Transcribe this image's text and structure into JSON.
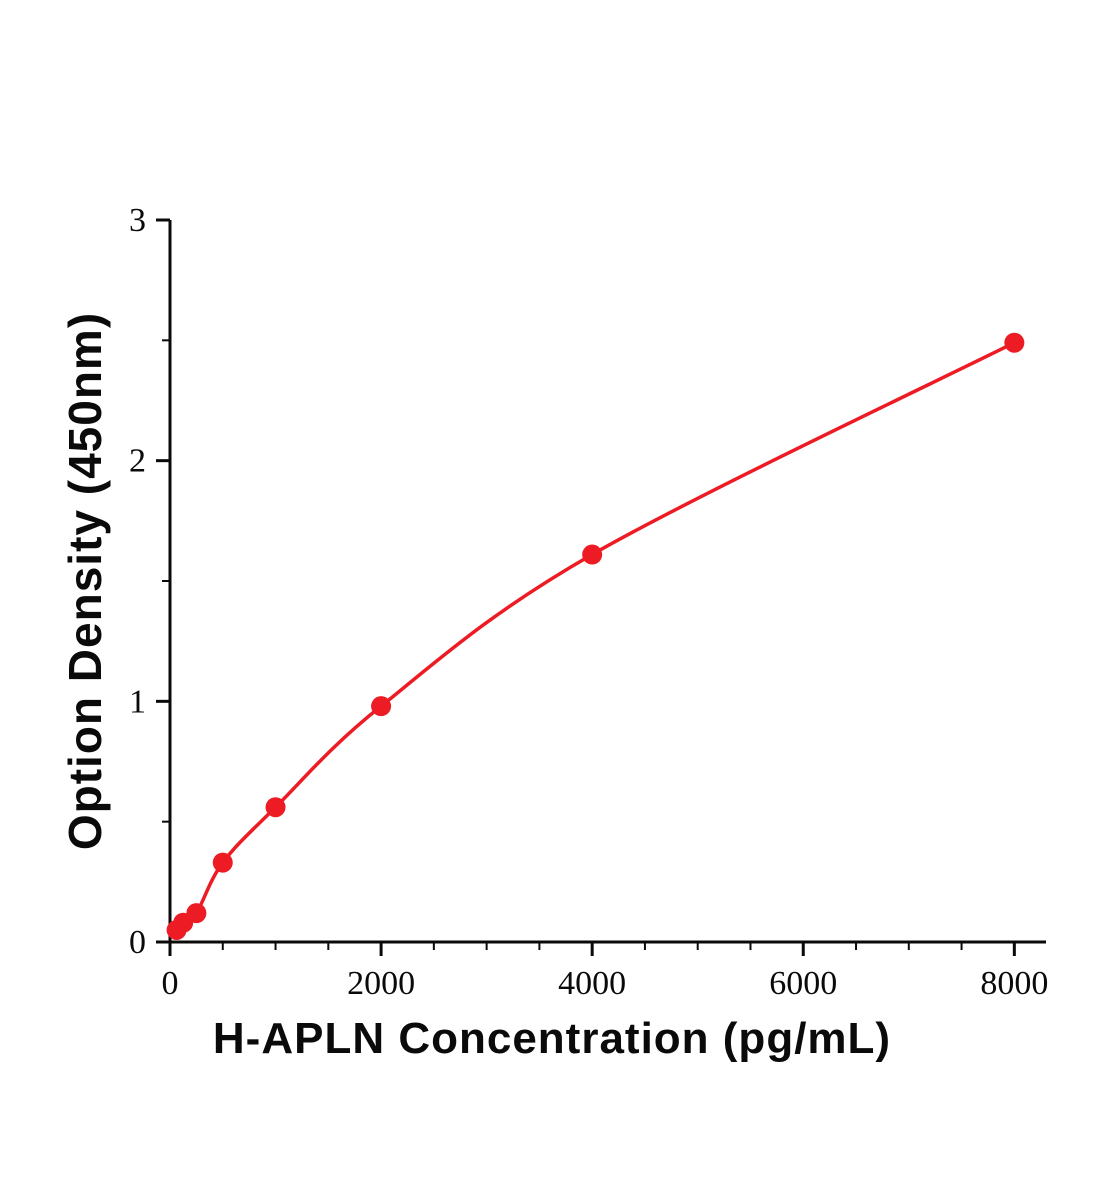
{
  "chart_data": {
    "type": "scatter",
    "title": "",
    "xlabel": "H-APLN Concentration (pg/mL)",
    "ylabel": "Option Density (450nm)",
    "x": [
      62.5,
      125,
      250,
      500,
      1000,
      2000,
      4000,
      8000
    ],
    "y": [
      0.05,
      0.08,
      0.12,
      0.33,
      0.56,
      0.98,
      1.61,
      2.49
    ],
    "xlim": [
      0,
      8300
    ],
    "ylim": [
      0,
      3
    ],
    "x_ticks": [
      0,
      2000,
      4000,
      6000,
      8000
    ],
    "y_ticks": [
      0,
      1,
      2,
      3
    ],
    "x_minor_step": 500,
    "y_minor_step": 0.5,
    "line_color": "#ed1c24",
    "marker_color": "#ed1c24",
    "axis_color": "#0a0a0a",
    "grid": false,
    "legend": "none",
    "curve_style": "smooth",
    "marker_size": 10
  }
}
